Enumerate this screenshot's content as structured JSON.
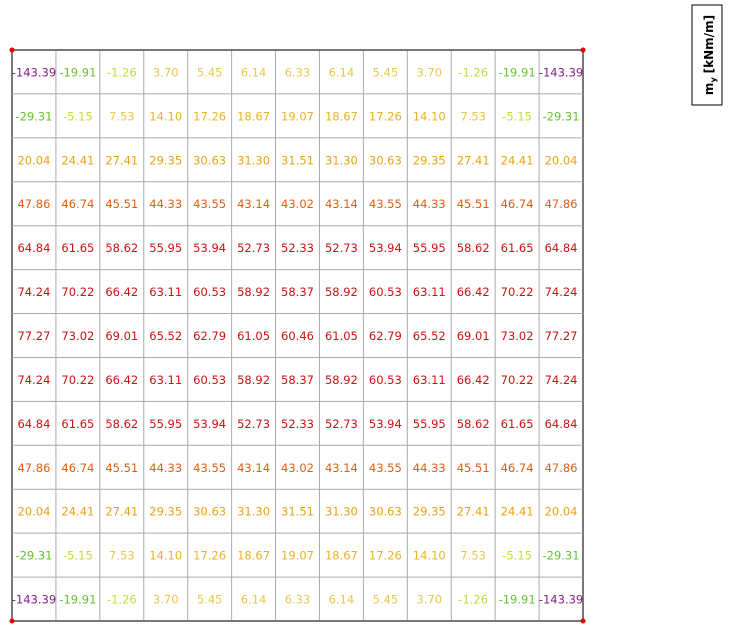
{
  "legend": {
    "symbol": "m",
    "subscript": "y",
    "unit": "[kNm/m]"
  },
  "rows": [
    [
      "-143.39",
      "-19.91",
      "-1.26",
      "3.70",
      "5.45",
      "6.14",
      "6.33",
      "6.14",
      "5.45",
      "3.70",
      "-1.26",
      "-19.91",
      "-143.39"
    ],
    [
      "-29.31",
      "-5.15",
      "7.53",
      "14.10",
      "17.26",
      "18.67",
      "19.07",
      "18.67",
      "17.26",
      "14.10",
      "7.53",
      "-5.15",
      "-29.31"
    ],
    [
      "20.04",
      "24.41",
      "27.41",
      "29.35",
      "30.63",
      "31.30",
      "31.51",
      "31.30",
      "30.63",
      "29.35",
      "27.41",
      "24.41",
      "20.04"
    ],
    [
      "47.86",
      "46.74",
      "45.51",
      "44.33",
      "43.55",
      "43.14",
      "43.02",
      "43.14",
      "43.55",
      "44.33",
      "45.51",
      "46.74",
      "47.86"
    ],
    [
      "64.84",
      "61.65",
      "58.62",
      "55.95",
      "53.94",
      "52.73",
      "52.33",
      "52.73",
      "53.94",
      "55.95",
      "58.62",
      "61.65",
      "64.84"
    ],
    [
      "74.24",
      "70.22",
      "66.42",
      "63.11",
      "60.53",
      "58.92",
      "58.37",
      "58.92",
      "60.53",
      "63.11",
      "66.42",
      "70.22",
      "74.24"
    ],
    [
      "77.27",
      "73.02",
      "69.01",
      "65.52",
      "62.79",
      "61.05",
      "60.46",
      "61.05",
      "62.79",
      "65.52",
      "69.01",
      "73.02",
      "77.27"
    ],
    [
      "74.24",
      "70.22",
      "66.42",
      "63.11",
      "60.53",
      "58.92",
      "58.37",
      "58.92",
      "60.53",
      "63.11",
      "66.42",
      "70.22",
      "74.24"
    ],
    [
      "64.84",
      "61.65",
      "58.62",
      "55.95",
      "53.94",
      "52.73",
      "52.33",
      "52.73",
      "53.94",
      "55.95",
      "58.62",
      "61.65",
      "64.84"
    ],
    [
      "47.86",
      "46.74",
      "45.51",
      "44.33",
      "43.55",
      "43.14",
      "43.02",
      "43.14",
      "43.55",
      "44.33",
      "45.51",
      "46.74",
      "47.86"
    ],
    [
      "20.04",
      "24.41",
      "27.41",
      "29.35",
      "30.63",
      "31.30",
      "31.51",
      "31.30",
      "30.63",
      "29.35",
      "27.41",
      "24.41",
      "20.04"
    ],
    [
      "-29.31",
      "-5.15",
      "7.53",
      "14.10",
      "17.26",
      "18.67",
      "19.07",
      "18.67",
      "17.26",
      "14.10",
      "7.53",
      "-5.15",
      "-29.31"
    ],
    [
      "-143.39",
      "-19.91",
      "-1.26",
      "3.70",
      "5.45",
      "6.14",
      "6.33",
      "6.14",
      "5.45",
      "3.70",
      "-1.26",
      "-19.91",
      "-143.39"
    ]
  ]
}
